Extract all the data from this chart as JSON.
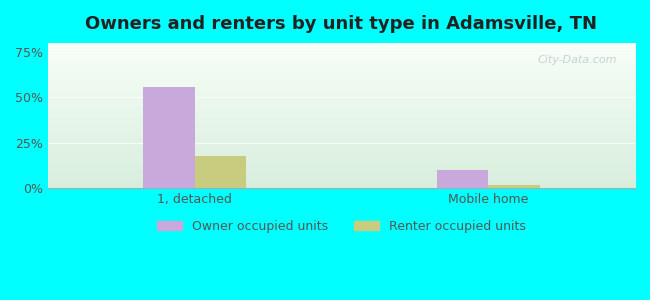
{
  "title": "Owners and renters by unit type in Adamsville, TN",
  "categories": [
    "1, detached",
    "Mobile home"
  ],
  "owner_values": [
    55.5,
    10.0
  ],
  "renter_values": [
    18.0,
    2.0
  ],
  "owner_color": "#c9a8dc",
  "renter_color": "#c8cc7e",
  "yticks": [
    0,
    25,
    50,
    75
  ],
  "ylim": [
    0,
    80
  ],
  "background_outer": "#00ffff",
  "background_inner_top": "#f0f8f0",
  "background_inner_bottom": "#e8f5e8",
  "watermark": "City-Data.com",
  "legend_labels": [
    "Owner occupied units",
    "Renter occupied units"
  ],
  "bar_width": 0.35,
  "group_positions": [
    1.0,
    3.0
  ]
}
